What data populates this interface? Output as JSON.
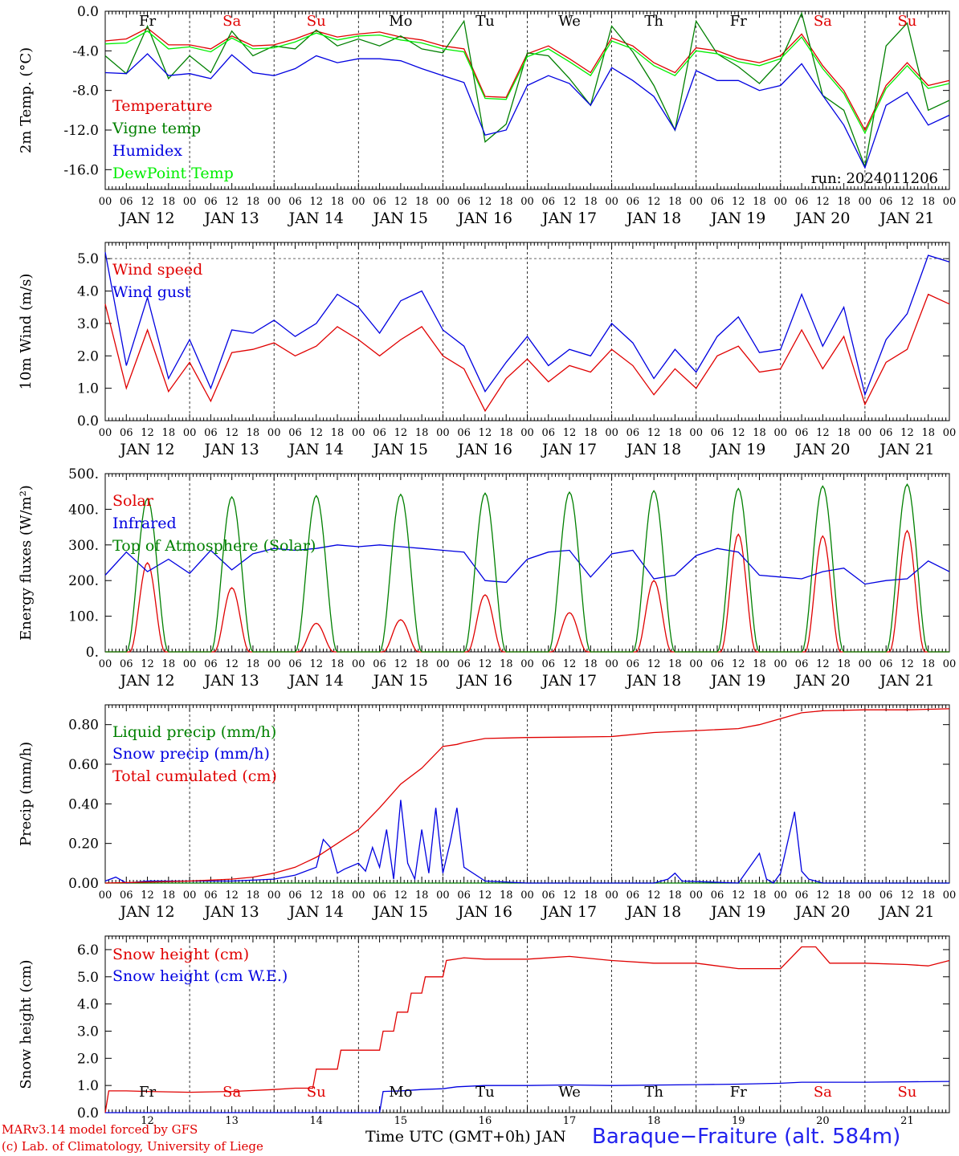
{
  "chart_data": [
    {
      "type": "line",
      "ylabel": "2m Temp. (°C)",
      "ylim": [
        -18.0,
        0.0
      ],
      "yticks": [
        "0.0",
        "-4.0",
        "-8.0",
        "-12.0",
        "-16.0"
      ],
      "run_label": "run: 2024011206",
      "day_names": [
        "Fr",
        "Sa",
        "Su",
        "Mo",
        "Tu",
        "We",
        "Th",
        "Fr",
        "Sa",
        "Su"
      ],
      "series": [
        {
          "name": "Temperature",
          "color": "#e00000",
          "x": [
            0,
            6,
            12,
            18,
            24,
            30,
            36,
            42,
            48,
            54,
            60,
            66,
            72,
            78,
            84,
            90,
            96,
            102,
            108,
            114,
            120,
            126,
            132,
            138,
            144,
            150,
            156,
            162,
            168,
            174,
            180,
            186,
            192,
            198,
            204,
            210,
            216,
            222,
            228,
            234,
            240
          ],
          "values": [
            -3.0,
            -2.8,
            -1.7,
            -3.4,
            -3.4,
            -3.8,
            -2.5,
            -3.5,
            -3.4,
            -2.8,
            -2.0,
            -2.6,
            -2.3,
            -2.1,
            -2.6,
            -2.9,
            -3.5,
            -3.8,
            -8.6,
            -8.7,
            -4.3,
            -3.5,
            -4.8,
            -6.2,
            -2.7,
            -3.5,
            -5.2,
            -6.2,
            -3.7,
            -4.0,
            -4.8,
            -5.2,
            -4.5,
            -2.3,
            -5.5,
            -8.0,
            -12.0,
            -7.5,
            -5.2,
            -7.5,
            -7.0
          ]
        },
        {
          "name": "Vigne temp",
          "color": "#008000",
          "x": [
            0,
            6,
            12,
            18,
            24,
            30,
            36,
            42,
            48,
            54,
            60,
            66,
            72,
            78,
            84,
            90,
            96,
            102,
            108,
            114,
            120,
            126,
            132,
            138,
            144,
            150,
            156,
            162,
            168,
            174,
            180,
            186,
            192,
            198,
            204,
            210,
            216,
            222,
            228,
            234,
            240
          ],
          "values": [
            -4.5,
            -6.3,
            -1.5,
            -6.8,
            -4.5,
            -6.2,
            -2.0,
            -4.5,
            -3.5,
            -3.8,
            -1.9,
            -3.5,
            -2.8,
            -3.5,
            -2.5,
            -3.8,
            -4.2,
            -1.0,
            -13.2,
            -11.4,
            -4.2,
            -4.5,
            -6.8,
            -9.5,
            -1.5,
            -4.1,
            -7.5,
            -12.0,
            -1.0,
            -4.3,
            -5.6,
            -7.3,
            -5.0,
            -0.2,
            -8.5,
            -10.0,
            -15.7,
            -3.5,
            -1.2,
            -10.0,
            -9.0
          ]
        },
        {
          "name": "Humidex",
          "color": "#0000e0",
          "x": [
            0,
            6,
            12,
            18,
            24,
            30,
            36,
            42,
            48,
            54,
            60,
            66,
            72,
            78,
            84,
            90,
            96,
            102,
            108,
            114,
            120,
            126,
            132,
            138,
            144,
            150,
            156,
            162,
            168,
            174,
            180,
            186,
            192,
            198,
            204,
            210,
            216,
            222,
            228,
            234,
            240
          ],
          "values": [
            -6.2,
            -6.3,
            -4.3,
            -6.5,
            -6.3,
            -6.8,
            -4.4,
            -6.2,
            -6.5,
            -5.8,
            -4.5,
            -5.2,
            -4.8,
            -4.8,
            -5.0,
            -5.8,
            -6.5,
            -7.2,
            -12.5,
            -12.0,
            -7.5,
            -6.5,
            -7.3,
            -9.5,
            -5.7,
            -7.0,
            -8.6,
            -12.0,
            -6.0,
            -7.0,
            -7.0,
            -8.0,
            -7.5,
            -5.3,
            -8.5,
            -11.5,
            -15.8,
            -9.5,
            -8.2,
            -11.5,
            -10.5
          ]
        },
        {
          "name": "DewPoint Temp",
          "color": "#00ee00",
          "x": [
            0,
            6,
            12,
            18,
            24,
            30,
            36,
            42,
            48,
            54,
            60,
            66,
            72,
            78,
            84,
            90,
            96,
            102,
            108,
            114,
            120,
            126,
            132,
            138,
            144,
            150,
            156,
            162,
            168,
            174,
            180,
            186,
            192,
            198,
            204,
            210,
            216,
            222,
            228,
            234,
            240
          ],
          "values": [
            -3.3,
            -3.2,
            -2.0,
            -3.8,
            -3.6,
            -4.1,
            -2.7,
            -3.8,
            -3.7,
            -3.1,
            -2.2,
            -2.9,
            -2.5,
            -2.4,
            -2.9,
            -3.2,
            -3.8,
            -4.1,
            -8.8,
            -8.9,
            -4.6,
            -3.8,
            -5.1,
            -6.5,
            -3.0,
            -3.8,
            -5.5,
            -6.5,
            -4.0,
            -4.3,
            -5.1,
            -5.5,
            -4.8,
            -2.6,
            -5.8,
            -8.3,
            -12.3,
            -7.8,
            -5.5,
            -7.8,
            -7.3
          ]
        }
      ]
    },
    {
      "type": "line",
      "ylabel": "10m Wind (m/s)",
      "ylim": [
        0.0,
        5.5
      ],
      "yticks": [
        "0.0",
        "1.0",
        "2.0",
        "3.0",
        "4.0",
        "5.0"
      ],
      "series": [
        {
          "name": "Wind speed",
          "color": "#e00000",
          "x": [
            0,
            6,
            12,
            18,
            24,
            30,
            36,
            42,
            48,
            54,
            60,
            66,
            72,
            78,
            84,
            90,
            96,
            102,
            108,
            114,
            120,
            126,
            132,
            138,
            144,
            150,
            156,
            162,
            168,
            174,
            180,
            186,
            192,
            198,
            204,
            210,
            216,
            222,
            228,
            234,
            240
          ],
          "values": [
            3.6,
            1.0,
            2.8,
            0.9,
            1.8,
            0.6,
            2.1,
            2.2,
            2.4,
            2.0,
            2.3,
            2.9,
            2.5,
            2.0,
            2.5,
            2.9,
            2.0,
            1.6,
            0.3,
            1.3,
            1.9,
            1.2,
            1.7,
            1.5,
            2.2,
            1.7,
            0.8,
            1.6,
            1.0,
            2.0,
            2.3,
            1.5,
            1.6,
            2.8,
            1.6,
            2.6,
            0.5,
            1.8,
            2.2,
            3.9,
            3.6
          ]
        },
        {
          "name": "Wind gust",
          "color": "#0000e0",
          "x": [
            0,
            6,
            12,
            18,
            24,
            30,
            36,
            42,
            48,
            54,
            60,
            66,
            72,
            78,
            84,
            90,
            96,
            102,
            108,
            114,
            120,
            126,
            132,
            138,
            144,
            150,
            156,
            162,
            168,
            174,
            180,
            186,
            192,
            198,
            204,
            210,
            216,
            222,
            228,
            234,
            240
          ],
          "values": [
            5.2,
            1.7,
            3.8,
            1.3,
            2.5,
            1.0,
            2.8,
            2.7,
            3.1,
            2.6,
            3.0,
            3.9,
            3.5,
            2.7,
            3.7,
            4.0,
            2.8,
            2.3,
            0.9,
            1.8,
            2.6,
            1.7,
            2.2,
            2.0,
            3.0,
            2.4,
            1.3,
            2.2,
            1.5,
            2.6,
            3.2,
            2.1,
            2.2,
            3.9,
            2.3,
            3.5,
            0.8,
            2.5,
            3.3,
            5.1,
            4.9
          ]
        }
      ]
    },
    {
      "type": "line",
      "ylabel": "Energy fluxes (W/m²)",
      "ylim": [
        0,
        500
      ],
      "yticks": [
        "0.",
        "100.",
        "200.",
        "300.",
        "400.",
        "500."
      ],
      "series": [
        {
          "name": "Solar",
          "color": "#e00000",
          "peaks": [
            250,
            180,
            80,
            90,
            160,
            110,
            200,
            330,
            325,
            340
          ]
        },
        {
          "name": "Infrared",
          "color": "#0000e0",
          "x": [
            0,
            6,
            12,
            18,
            24,
            30,
            36,
            42,
            48,
            54,
            60,
            66,
            72,
            78,
            84,
            90,
            96,
            102,
            108,
            114,
            120,
            126,
            132,
            138,
            144,
            150,
            156,
            162,
            168,
            174,
            180,
            186,
            192,
            198,
            204,
            210,
            216,
            222,
            228,
            234,
            240
          ],
          "values": [
            215,
            280,
            225,
            260,
            220,
            285,
            230,
            275,
            290,
            285,
            290,
            300,
            295,
            300,
            295,
            290,
            285,
            280,
            200,
            195,
            260,
            280,
            285,
            210,
            275,
            285,
            205,
            215,
            270,
            290,
            280,
            215,
            210,
            205,
            225,
            235,
            190,
            200,
            205,
            255,
            225
          ]
        },
        {
          "name": "Top of Atmosphere (Solar)",
          "color": "#008000",
          "peaks": [
            430,
            435,
            438,
            442,
            445,
            448,
            452,
            458,
            465,
            470
          ]
        }
      ]
    },
    {
      "type": "line",
      "ylabel": "Precip (mm/h)",
      "ylim": [
        0.0,
        0.9
      ],
      "yticks": [
        "0.00",
        "0.20",
        "0.40",
        "0.60",
        "0.80"
      ],
      "series": [
        {
          "name": "Liquid precip (mm/h)",
          "color": "#008000",
          "x": [
            0,
            240
          ],
          "values": [
            0.0,
            0.0
          ]
        },
        {
          "name": "Snow precip (mm/h)",
          "color": "#0000e0",
          "x": [
            0,
            3,
            6,
            12,
            24,
            36,
            48,
            54,
            60,
            62,
            64,
            66,
            68,
            72,
            74,
            76,
            78,
            80,
            82,
            84,
            86,
            88,
            90,
            92,
            94,
            96,
            98,
            100,
            102,
            108,
            120,
            156,
            160,
            162,
            164,
            180,
            186,
            188,
            190,
            192,
            196,
            198,
            200,
            204,
            240
          ],
          "values": [
            0.01,
            0.03,
            0.0,
            0.01,
            0.01,
            0.01,
            0.02,
            0.04,
            0.08,
            0.22,
            0.18,
            0.05,
            0.07,
            0.1,
            0.06,
            0.18,
            0.08,
            0.27,
            0.02,
            0.42,
            0.1,
            0.02,
            0.27,
            0.05,
            0.38,
            0.05,
            0.2,
            0.38,
            0.08,
            0.01,
            0.0,
            0.0,
            0.02,
            0.05,
            0.01,
            0.0,
            0.15,
            0.02,
            0.0,
            0.05,
            0.36,
            0.06,
            0.02,
            0.0,
            0.0
          ]
        },
        {
          "name": "Total cumulated (cm)",
          "color": "#e00000",
          "x": [
            0,
            12,
            24,
            36,
            42,
            48,
            54,
            60,
            66,
            72,
            78,
            84,
            90,
            96,
            100,
            102,
            108,
            120,
            132,
            144,
            156,
            168,
            180,
            186,
            192,
            196,
            198,
            204,
            216,
            228,
            240
          ],
          "values": [
            0.0,
            0.005,
            0.01,
            0.02,
            0.03,
            0.05,
            0.08,
            0.13,
            0.2,
            0.27,
            0.38,
            0.5,
            0.58,
            0.69,
            0.7,
            0.71,
            0.73,
            0.735,
            0.737,
            0.74,
            0.76,
            0.77,
            0.78,
            0.8,
            0.83,
            0.85,
            0.86,
            0.87,
            0.875,
            0.875,
            0.88
          ]
        }
      ]
    },
    {
      "type": "line",
      "ylabel": "Snow height (cm)",
      "ylim": [
        0.0,
        6.5
      ],
      "yticks": [
        "0.0",
        "1.0",
        "2.0",
        "3.0",
        "4.0",
        "5.0",
        "6.0"
      ],
      "day_names": [
        "Fr",
        "Sa",
        "Su",
        "Mo",
        "Tu",
        "We",
        "Th",
        "Fr",
        "Sa",
        "Su"
      ],
      "bottom_ticks": [
        "12",
        "13",
        "14",
        "15",
        "16",
        "17",
        "18",
        "19",
        "20",
        "21"
      ],
      "series": [
        {
          "name": "Snow height (cm)",
          "color": "#e00000",
          "x": [
            0,
            1,
            2,
            6,
            12,
            24,
            36,
            48,
            54,
            59,
            60,
            66,
            67,
            72,
            78,
            79,
            82,
            83,
            86,
            87,
            90,
            91,
            96,
            97,
            102,
            108,
            120,
            132,
            144,
            156,
            168,
            180,
            186,
            192,
            198,
            202,
            206,
            216,
            228,
            234,
            240
          ],
          "values": [
            0.0,
            0.8,
            0.8,
            0.8,
            0.78,
            0.75,
            0.78,
            0.85,
            0.9,
            0.9,
            1.6,
            1.6,
            2.3,
            2.3,
            2.3,
            3.0,
            3.0,
            3.7,
            3.7,
            4.4,
            4.4,
            5.0,
            5.0,
            5.6,
            5.7,
            5.65,
            5.65,
            5.75,
            5.6,
            5.5,
            5.5,
            5.3,
            5.3,
            5.3,
            6.1,
            6.1,
            5.5,
            5.5,
            5.45,
            5.4,
            5.6
          ]
        },
        {
          "name": "Snow height (cm W.E.)",
          "color": "#0000e0",
          "x": [
            0,
            1,
            78,
            79,
            84,
            90,
            96,
            100,
            108,
            120,
            132,
            144,
            168,
            180,
            192,
            198,
            216,
            240
          ],
          "values": [
            0.0,
            0.0,
            0.0,
            0.78,
            0.8,
            0.85,
            0.88,
            0.95,
            1.0,
            1.0,
            1.02,
            1.0,
            1.03,
            1.05,
            1.08,
            1.12,
            1.12,
            1.15
          ]
        }
      ]
    }
  ],
  "axes": {
    "x_hour_ticks": [
      "00",
      "06",
      "12",
      "18"
    ],
    "x_day_labels": [
      "JAN 12",
      "JAN 13",
      "JAN 14",
      "JAN 15",
      "JAN 16",
      "JAN 17",
      "JAN 18",
      "JAN 19",
      "JAN 20",
      "JAN 21"
    ]
  },
  "footer": {
    "model_line": "MARv3.14 model forced by GFS",
    "credit_line": "(c) Lab. of Climatology, University of Liege",
    "xlabel": "Time UTC (GMT+0h) JAN",
    "station": "Baraque−Fraiture (alt. 584m)"
  },
  "colors": {
    "red": "#e00000",
    "green": "#008000",
    "blue": "#0000e0",
    "light_green": "#00ee00",
    "weekend": "#e00000"
  }
}
